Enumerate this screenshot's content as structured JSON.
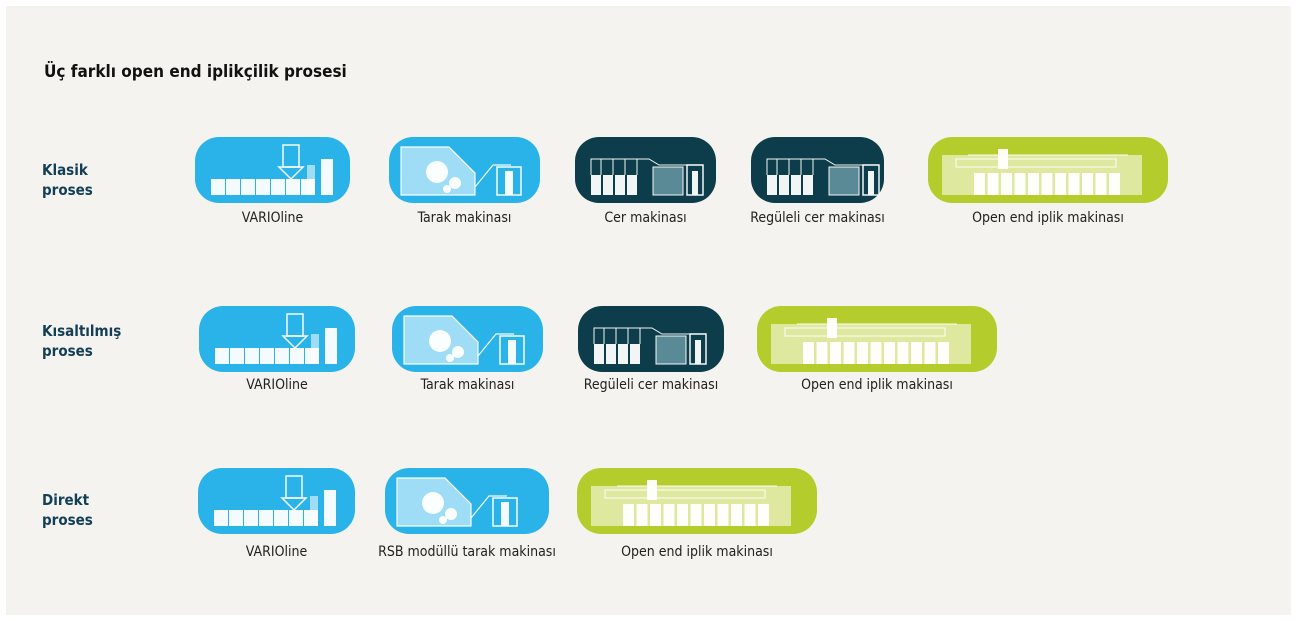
{
  "title": "Üç farklı open end iplikçilik prosesi",
  "rows": [
    {
      "label": "Klasik proses",
      "machines": [
        "VARIOline",
        "Tarak makinası",
        "Cer makinası",
        "Regüleli cer makinası",
        "Open end iplik makinası"
      ]
    },
    {
      "label": "Kısaltılmış proses",
      "machines": [
        "VARIOline",
        "Tarak makinası",
        "Regüleli cer makinası",
        "Open end iplik makinası"
      ]
    },
    {
      "label": "Direkt proses",
      "machines": [
        "VARIOline",
        "RSB modüllü tarak makinası",
        "Open end iplik makinası"
      ]
    }
  ]
}
